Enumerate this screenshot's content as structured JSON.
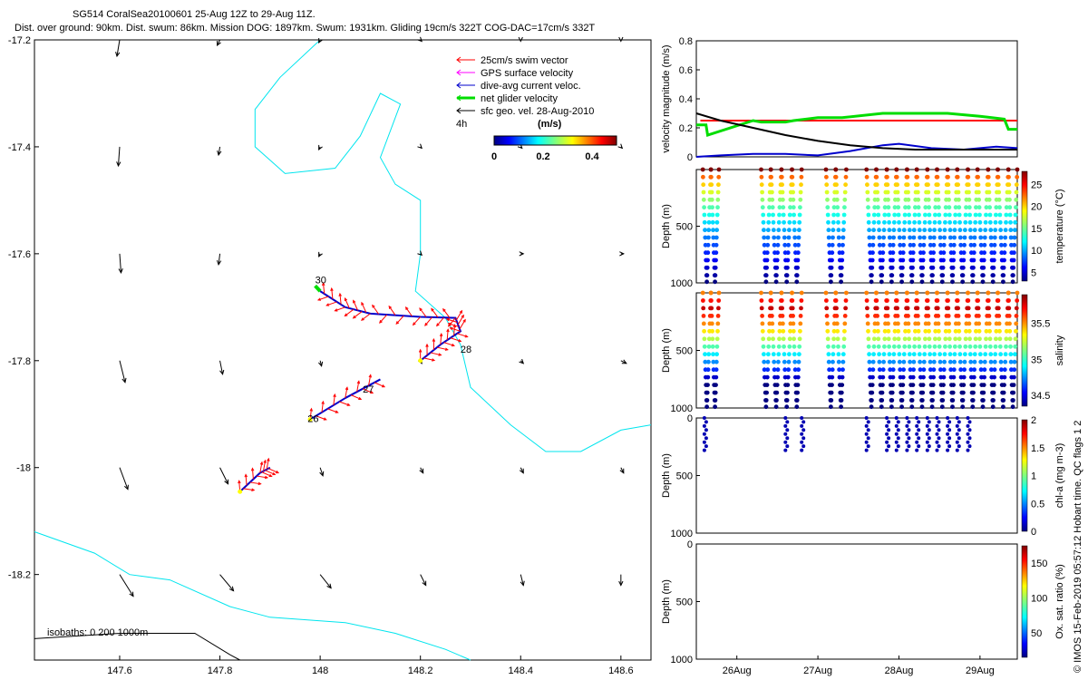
{
  "header": {
    "line1": "SG514 CoralSea20100601 25-Aug 12Z to 29-Aug 11Z.",
    "line2": "Dist. over ground: 90km. Dist. swum: 86km. Mission DOG: 1897km. Swum: 1931km. Gliding 19cm/s 322T COG-DAC=17cm/s 332T"
  },
  "credit": "© IMOS 15-Feb-2019 05:57:12 Hobart time. QC flags 1  2",
  "chart_data": [
    {
      "id": "map",
      "type": "scatter",
      "xlim": [
        147.43,
        148.66
      ],
      "ylim": [
        -18.36,
        -17.2
      ],
      "xticks": [
        "147.6",
        "147.8",
        "148",
        "148.2",
        "148.4",
        "148.6"
      ],
      "xtick_values": [
        147.6,
        147.8,
        148.0,
        148.2,
        148.4,
        148.6
      ],
      "yticks": [
        "-17.2",
        "-17.4",
        "-17.6",
        "-17.8",
        "-18",
        "-18.2"
      ],
      "ytick_values": [
        -17.2,
        -17.4,
        -17.6,
        -17.8,
        -18.0,
        -18.2
      ],
      "legend": {
        "placement": "top-right",
        "entries": [
          {
            "label": "25cm/s swim vector",
            "color": "#ff0000"
          },
          {
            "label": "GPS surface velocity",
            "color": "#ff00ff"
          },
          {
            "label": "dive-avg current veloc.",
            "color": "#0000cc"
          },
          {
            "label": "net glider velocity",
            "color": "#00dd00"
          },
          {
            "label": "sfc geo. vel. 28-Aug-2010",
            "color": "#000000"
          }
        ],
        "interval_label": "4h",
        "colorbar_label": "(m/s)",
        "colorbar_ticks": [
          "0",
          "0.2",
          "0.4"
        ],
        "colorbar_tick_values": [
          0,
          0.2,
          0.4
        ],
        "colorbar_range": [
          0,
          0.5
        ]
      },
      "isobath_label": "isobaths: 0   200  1000m",
      "day_labels": [
        {
          "text": "26",
          "lon": 147.975,
          "lat": -17.915
        },
        {
          "text": "27",
          "lon": 148.085,
          "lat": -17.86
        },
        {
          "text": "28",
          "lon": 148.28,
          "lat": -17.785
        },
        {
          "text": "30",
          "lon": 147.99,
          "lat": -17.655
        }
      ],
      "coastline_0m": [
        [
          148.0,
          -17.2
        ],
        [
          147.92,
          -17.27
        ],
        [
          147.87,
          -17.33
        ],
        [
          147.87,
          -17.4
        ],
        [
          147.93,
          -17.45
        ],
        [
          148.03,
          -17.44
        ],
        [
          148.08,
          -17.38
        ],
        [
          148.12,
          -17.3
        ],
        [
          148.16,
          -17.32
        ],
        [
          148.12,
          -17.42
        ],
        [
          148.15,
          -17.47
        ],
        [
          148.2,
          -17.5
        ],
        [
          148.2,
          -17.6
        ],
        [
          148.19,
          -17.67
        ],
        [
          148.25,
          -17.72
        ],
        [
          148.28,
          -17.77
        ],
        [
          148.3,
          -17.85
        ],
        [
          148.38,
          -17.92
        ],
        [
          148.45,
          -17.97
        ],
        [
          148.52,
          -17.97
        ],
        [
          148.6,
          -17.93
        ],
        [
          148.66,
          -17.92
        ]
      ],
      "coastline_200m": [
        [
          147.43,
          -18.12
        ],
        [
          147.55,
          -18.16
        ],
        [
          147.62,
          -18.2
        ],
        [
          147.7,
          -18.21
        ],
        [
          147.82,
          -18.26
        ],
        [
          147.9,
          -18.28
        ],
        [
          148.05,
          -18.29
        ],
        [
          148.15,
          -18.31
        ],
        [
          148.25,
          -18.34
        ],
        [
          148.3,
          -18.36
        ]
      ],
      "coastline_1000m": [
        [
          147.43,
          -18.32
        ],
        [
          147.6,
          -18.31
        ],
        [
          147.75,
          -18.31
        ],
        [
          147.82,
          -18.35
        ],
        [
          147.84,
          -18.36
        ]
      ],
      "sfc_geo_vectors": [
        [
          147.6,
          -17.2,
          -0.01,
          -0.06
        ],
        [
          147.8,
          -17.2,
          -0.01,
          -0.02
        ],
        [
          148.0,
          -17.2,
          -0.005,
          -0.01
        ],
        [
          148.2,
          -17.2,
          0.005,
          -0.005
        ],
        [
          148.4,
          -17.2,
          0,
          -0.005
        ],
        [
          148.6,
          -17.2,
          0,
          -0.005
        ],
        [
          147.6,
          -17.4,
          -0.005,
          -0.07
        ],
        [
          147.8,
          -17.4,
          -0.005,
          -0.03
        ],
        [
          148.0,
          -17.4,
          -0.005,
          -0.01
        ],
        [
          148.2,
          -17.4,
          0.005,
          -0.005
        ],
        [
          148.4,
          -17.4,
          0.005,
          -0.005
        ],
        [
          148.6,
          -17.4,
          0.005,
          -0.005
        ],
        [
          147.6,
          -17.6,
          0.005,
          -0.07
        ],
        [
          147.8,
          -17.6,
          -0.005,
          -0.04
        ],
        [
          148.0,
          -17.6,
          -0.005,
          -0.01
        ],
        [
          148.2,
          -17.6,
          0.005,
          -0.005
        ],
        [
          148.4,
          -17.6,
          0.01,
          0
        ],
        [
          148.6,
          -17.6,
          0.01,
          0
        ],
        [
          147.6,
          -17.8,
          0.02,
          -0.08
        ],
        [
          147.8,
          -17.8,
          0.01,
          -0.05
        ],
        [
          148.0,
          -17.8,
          0.005,
          -0.02
        ],
        [
          148.2,
          -17.8,
          0.005,
          -0.01
        ],
        [
          148.4,
          -17.8,
          0.01,
          -0.01
        ],
        [
          148.6,
          -17.8,
          0.02,
          -0.01
        ],
        [
          147.6,
          -18.0,
          0.03,
          -0.08
        ],
        [
          147.8,
          -18.0,
          0.03,
          -0.06
        ],
        [
          148.0,
          -18.0,
          0.01,
          -0.03
        ],
        [
          148.2,
          -18.0,
          0.01,
          -0.02
        ],
        [
          148.4,
          -18.0,
          0.01,
          -0.02
        ],
        [
          148.6,
          -18.0,
          0.01,
          -0.02
        ],
        [
          147.6,
          -18.2,
          0.05,
          -0.08
        ],
        [
          147.8,
          -18.2,
          0.05,
          -0.06
        ],
        [
          148.0,
          -18.2,
          0.04,
          -0.05
        ],
        [
          148.2,
          -18.2,
          0.02,
          -0.04
        ],
        [
          148.4,
          -18.2,
          0.01,
          -0.04
        ],
        [
          148.6,
          -18.2,
          0,
          -0.04
        ]
      ],
      "glider_track": [
        [
          147.84,
          -18.045
        ],
        [
          147.88,
          -18.01
        ],
        [
          147.9,
          -18.0
        ],
        [
          147.98,
          -17.91
        ],
        [
          148.05,
          -17.87
        ],
        [
          148.12,
          -17.835
        ],
        [
          148.2,
          -17.8
        ],
        [
          148.24,
          -17.77
        ],
        [
          148.28,
          -17.745
        ],
        [
          148.27,
          -17.72
        ],
        [
          148.2,
          -17.718
        ],
        [
          148.1,
          -17.712
        ],
        [
          148.05,
          -17.7
        ],
        [
          148.0,
          -17.67
        ]
      ]
    },
    {
      "id": "velocity",
      "type": "line",
      "ylabel": "velocity magnitude (m/s)",
      "ylim": [
        0,
        0.8
      ],
      "yticks": [
        "0",
        "0.2",
        "0.4",
        "0.6",
        "0.8"
      ],
      "ytick_values": [
        0,
        0.2,
        0.4,
        0.6,
        0.8
      ],
      "xlim": [
        25.5,
        29.46
      ],
      "series": [
        {
          "color": "#ff0000",
          "x": [
            25.55,
            26.2,
            26.5,
            27.2,
            27.7,
            28.0,
            28.3,
            29.0,
            29.46
          ],
          "y": [
            0.25,
            0.25,
            0.25,
            0.25,
            0.25,
            0.25,
            0.25,
            0.25,
            0.25
          ]
        },
        {
          "color": "#00dd00",
          "x": [
            25.5,
            25.62,
            25.64,
            26.2,
            26.3,
            26.6,
            26.7,
            27.0,
            27.3,
            27.8,
            28.2,
            28.6,
            29.0,
            29.3,
            29.35,
            29.46
          ],
          "y": [
            0.22,
            0.22,
            0.15,
            0.25,
            0.24,
            0.24,
            0.25,
            0.27,
            0.27,
            0.3,
            0.3,
            0.3,
            0.28,
            0.26,
            0.19,
            0.19
          ]
        },
        {
          "color": "#0000cc",
          "x": [
            25.5,
            25.8,
            26.2,
            26.6,
            27.0,
            27.4,
            27.8,
            28.0,
            28.4,
            28.8,
            29.2,
            29.46
          ],
          "y": [
            0.0,
            0.01,
            0.02,
            0.02,
            0.01,
            0.04,
            0.08,
            0.09,
            0.06,
            0.05,
            0.07,
            0.06
          ]
        },
        {
          "color": "#000000",
          "x": [
            25.5,
            25.8,
            26.2,
            26.6,
            27.0,
            27.4,
            27.8,
            28.2,
            28.6,
            29.0,
            29.46
          ],
          "y": [
            0.3,
            0.25,
            0.2,
            0.15,
            0.11,
            0.08,
            0.06,
            0.05,
            0.05,
            0.05,
            0.05
          ]
        }
      ]
    },
    {
      "id": "temperature",
      "type": "scatter",
      "ylabel": "Depth (m)",
      "colorbar_label": "temperature (°C)",
      "ylim": [
        1000,
        0
      ],
      "yticks": [
        "500",
        "1000"
      ],
      "ytick_values": [
        500,
        1000
      ],
      "colorbar_ticks": [
        "25",
        "20",
        "15",
        "10",
        "5"
      ],
      "colorbar_tick_values": [
        25,
        20,
        15,
        10,
        5
      ],
      "colorbar_range": [
        3,
        28
      ]
    },
    {
      "id": "salinity",
      "type": "scatter",
      "ylabel": "Depth (m)",
      "colorbar_label": "salinity",
      "ylim": [
        1000,
        0
      ],
      "yticks": [
        "500",
        "1000"
      ],
      "ytick_values": [
        500,
        1000
      ],
      "colorbar_ticks": [
        "35.5",
        "35",
        "34.5"
      ],
      "colorbar_tick_values": [
        35.5,
        35.0,
        34.5
      ],
      "colorbar_range": [
        34.35,
        35.9
      ]
    },
    {
      "id": "chla",
      "type": "scatter",
      "ylabel": "Depth (m)",
      "colorbar_label": "chl-a (mg m-3)",
      "ylim": [
        1000,
        0
      ],
      "yticks": [
        "0",
        "500",
        "1000"
      ],
      "ytick_values": [
        0,
        500,
        1000
      ],
      "colorbar_ticks": [
        "2",
        "1.5",
        "1",
        "0.5",
        "0"
      ],
      "colorbar_tick_values": [
        2,
        1.5,
        1,
        0.5,
        0
      ],
      "colorbar_range": [
        0,
        2
      ]
    },
    {
      "id": "oxygen",
      "type": "scatter",
      "ylabel": "Depth (m)",
      "colorbar_label": "Ox. sat. ratio (%)",
      "ylim": [
        1000,
        0
      ],
      "yticks": [
        "0",
        "500",
        "1000"
      ],
      "ytick_values": [
        0,
        500,
        1000
      ],
      "colorbar_ticks": [
        "150",
        "100",
        "50"
      ],
      "colorbar_tick_values": [
        150,
        100,
        50
      ],
      "colorbar_range": [
        15,
        175
      ],
      "xticks": [
        "26Aug",
        "27Aug",
        "28Aug",
        "29Aug"
      ],
      "xtick_values": [
        26,
        27,
        28,
        29
      ]
    }
  ],
  "dive_times": [
    25.58,
    25.68,
    25.78,
    26.3,
    26.42,
    26.55,
    26.68,
    26.8,
    27.1,
    27.22,
    27.35,
    27.6,
    27.72,
    27.85,
    27.97,
    28.1,
    28.22,
    28.35,
    28.47,
    28.6,
    28.72,
    28.85,
    28.97,
    29.1,
    29.22,
    29.35,
    29.46
  ],
  "chla_profile_times": [
    25.6,
    26.6,
    26.8,
    27.6,
    27.85,
    27.97,
    28.1,
    28.22,
    28.35,
    28.47,
    28.6,
    28.72,
    28.85
  ]
}
